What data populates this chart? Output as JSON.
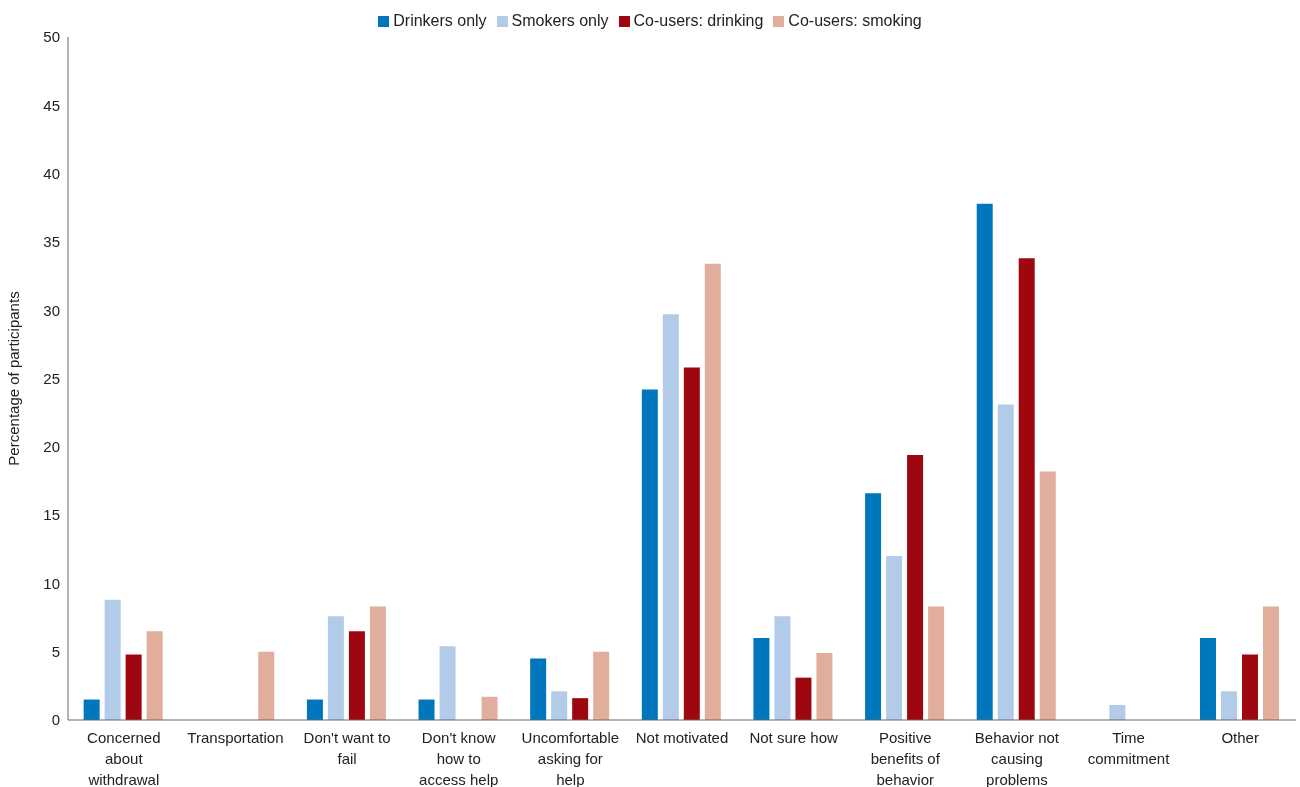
{
  "chart_data": {
    "type": "bar",
    "ylabel": "Percentage of participants",
    "categories": [
      "Concerned about withdrawal",
      "Transportation",
      "Don't want to fail",
      "Don't know how to access help",
      "Uncomfortable asking for help",
      "Not motivated",
      "Not sure how",
      "Positive benefits of behavior",
      "Behavior not causing problems",
      "Time commitment",
      "Other"
    ],
    "series": [
      {
        "name": "Drinkers only",
        "color": "#0077bd",
        "values": [
          1.5,
          0,
          1.5,
          1.5,
          4.5,
          24.2,
          6.0,
          16.6,
          37.8,
          0,
          6.0
        ]
      },
      {
        "name": "Smokers only",
        "color": "#b1cbe8",
        "values": [
          8.8,
          0,
          7.6,
          5.4,
          2.1,
          29.7,
          7.6,
          12.0,
          23.1,
          1.1,
          2.1
        ]
      },
      {
        "name": "Co-users: drinking",
        "color": "#9e0710",
        "values": [
          4.8,
          0,
          6.5,
          0,
          1.6,
          25.8,
          3.1,
          19.4,
          33.8,
          0,
          4.8
        ]
      },
      {
        "name": "Co-users: smoking",
        "color": "#e1ae9b",
        "values": [
          6.5,
          5.0,
          8.3,
          1.7,
          5.0,
          33.4,
          4.9,
          8.3,
          18.2,
          0,
          8.3
        ]
      }
    ],
    "ylim": [
      0,
      50
    ],
    "yticks": [
      0,
      5,
      10,
      15,
      20,
      25,
      30,
      35,
      40,
      45,
      50
    ],
    "grid": false,
    "legend": "top"
  }
}
